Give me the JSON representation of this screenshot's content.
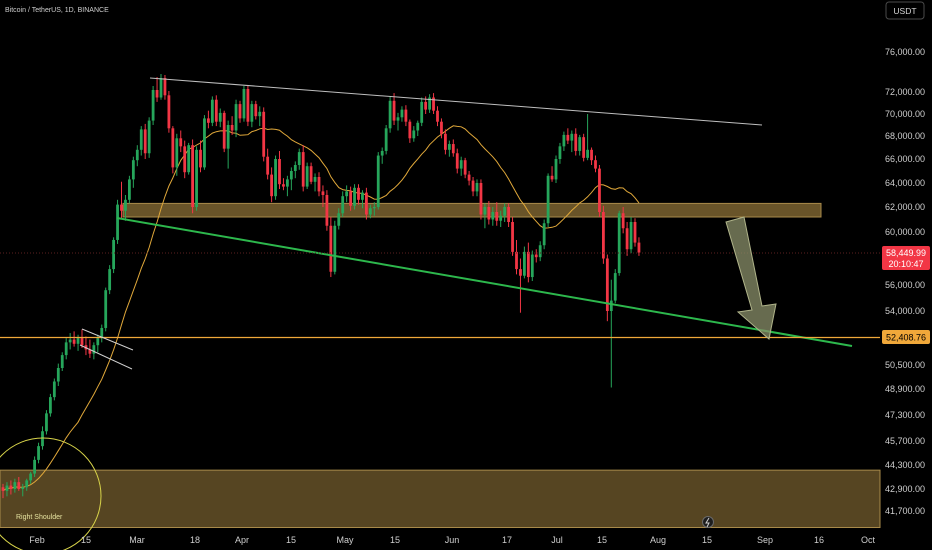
{
  "header": {
    "symbol": "Bitcoin / TetherUS, 1D, BINANCE",
    "currency_button": "USDT"
  },
  "chart_data": {
    "type": "candlestick",
    "title": "Bitcoin / TetherUS, 1D, BINANCE",
    "xlabel": "",
    "ylabel": "",
    "ylim": [
      40800,
      78500
    ],
    "y_ticks": [
      "76,000.00",
      "72,000.00",
      "70,000.00",
      "68,000.00",
      "66,000.00",
      "64,000.00",
      "62,000.00",
      "60,000.00",
      "56,000.00",
      "54,000.00",
      "50,500.00",
      "48,900.00",
      "47,300.00",
      "45,700.00",
      "44,300.00",
      "42,900.00",
      "41,700.00"
    ],
    "x_ticks": [
      "Feb",
      "15",
      "Mar",
      "18",
      "Apr",
      "15",
      "May",
      "15",
      "Jun",
      "17",
      "Jul",
      "15",
      "Aug",
      "15",
      "Sep",
      "16",
      "Oct"
    ],
    "current_price_label": "58,449.99",
    "countdown_label": "20:10:47",
    "level_price_label": "52,408.76",
    "annotations": [
      "Right Shoulder"
    ],
    "support_level": 52408.76,
    "zones": [
      {
        "low": 61200,
        "high": 62300
      },
      {
        "low": 40800,
        "high": 44000
      }
    ],
    "series": [
      {
        "values": [
          [
            43000,
            43200,
            42400,
            42800
          ],
          [
            42800,
            43300,
            42500,
            43100
          ],
          [
            43100,
            43400,
            42600,
            42900
          ],
          [
            42900,
            43500,
            42700,
            43300
          ],
          [
            43300,
            43600,
            42800,
            42900
          ],
          [
            42900,
            43200,
            42500,
            43000
          ],
          [
            43000,
            43500,
            42800,
            43400
          ],
          [
            43400,
            43900,
            43200,
            43800
          ],
          [
            43800,
            44800,
            43600,
            44600
          ],
          [
            44600,
            45600,
            44400,
            45400
          ],
          [
            45400,
            46600,
            45200,
            46300
          ],
          [
            46300,
            47600,
            46100,
            47400
          ],
          [
            47400,
            48600,
            47200,
            48400
          ],
          [
            48400,
            49600,
            48200,
            49400
          ],
          [
            49400,
            50600,
            49100,
            50300
          ],
          [
            50300,
            51400,
            50100,
            51200
          ],
          [
            51200,
            52400,
            50900,
            52100
          ],
          [
            52100,
            52700,
            51600,
            52300
          ],
          [
            52300,
            52800,
            51800,
            52000
          ],
          [
            52000,
            52600,
            51500,
            52400
          ],
          [
            52400,
            52900,
            51700,
            51900
          ],
          [
            51900,
            52500,
            51200,
            51600
          ],
          [
            51600,
            52300,
            51000,
            51300
          ],
          [
            51300,
            52100,
            50900,
            51900
          ],
          [
            51900,
            52600,
            51400,
            52400
          ],
          [
            52400,
            53200,
            52100,
            53000
          ],
          [
            53000,
            55800,
            52800,
            55600
          ],
          [
            55600,
            57500,
            55300,
            57200
          ],
          [
            57200,
            59600,
            56900,
            59400
          ],
          [
            59400,
            62600,
            59100,
            62200
          ],
          [
            62200,
            64100,
            61000,
            61700
          ],
          [
            61700,
            63000,
            60900,
            62600
          ],
          [
            62600,
            64600,
            62300,
            64300
          ],
          [
            64300,
            66200,
            63600,
            65900
          ],
          [
            65900,
            67200,
            65400,
            66800
          ],
          [
            66800,
            68900,
            66300,
            68600
          ],
          [
            68600,
            69100,
            66000,
            66500
          ],
          [
            66500,
            69700,
            66100,
            69400
          ],
          [
            69400,
            72600,
            69000,
            72200
          ],
          [
            72200,
            73500,
            71100,
            71500
          ],
          [
            71500,
            73800,
            71300,
            73400
          ],
          [
            73400,
            73700,
            71300,
            71700
          ],
          [
            71700,
            72100,
            68300,
            68700
          ],
          [
            68700,
            68900,
            64800,
            65300
          ],
          [
            65300,
            68200,
            64600,
            67800
          ],
          [
            67800,
            68500,
            66600,
            67100
          ],
          [
            67100,
            67600,
            64400,
            64900
          ],
          [
            64900,
            67400,
            64700,
            67200
          ],
          [
            67200,
            67700,
            61500,
            62000
          ],
          [
            62000,
            67100,
            61700,
            66800
          ],
          [
            66800,
            67600,
            64900,
            65300
          ],
          [
            65300,
            69900,
            65100,
            69600
          ],
          [
            69600,
            70300,
            68700,
            69200
          ],
          [
            69200,
            71600,
            68900,
            71300
          ],
          [
            71300,
            71700,
            68900,
            69300
          ],
          [
            69300,
            70500,
            68800,
            70100
          ],
          [
            70100,
            70300,
            66600,
            66900
          ],
          [
            66900,
            69400,
            65200,
            69000
          ],
          [
            69000,
            69800,
            68100,
            68500
          ],
          [
            68500,
            71300,
            67900,
            70900
          ],
          [
            70900,
            71200,
            69200,
            69600
          ],
          [
            69600,
            72600,
            69300,
            72300
          ],
          [
            72300,
            72700,
            68900,
            69300
          ],
          [
            69300,
            71200,
            68800,
            70900
          ],
          [
            70900,
            71200,
            69500,
            69800
          ],
          [
            69800,
            70700,
            68900,
            70200
          ],
          [
            70200,
            70600,
            65800,
            66200
          ],
          [
            66200,
            66900,
            64300,
            64700
          ],
          [
            64700,
            65300,
            62400,
            62900
          ],
          [
            62900,
            66300,
            62600,
            66000
          ],
          [
            66000,
            66700,
            63500,
            63900
          ],
          [
            63900,
            64400,
            63400,
            63700
          ],
          [
            63700,
            64600,
            62900,
            64300
          ],
          [
            64300,
            65300,
            63400,
            65000
          ],
          [
            65000,
            65800,
            64400,
            65500
          ],
          [
            65500,
            66900,
            65100,
            66600
          ],
          [
            66600,
            67200,
            63300,
            63700
          ],
          [
            63700,
            65700,
            63500,
            65400
          ],
          [
            65400,
            65700,
            63900,
            64100
          ],
          [
            64100,
            64800,
            63300,
            64500
          ],
          [
            64500,
            64900,
            62900,
            63300
          ],
          [
            63300,
            63800,
            62000,
            63000
          ],
          [
            63000,
            63400,
            60100,
            60500
          ],
          [
            60500,
            61200,
            56600,
            57000
          ],
          [
            57000,
            60900,
            56800,
            60500
          ],
          [
            60500,
            61900,
            60200,
            61500
          ],
          [
            61500,
            63300,
            61200,
            62900
          ],
          [
            62900,
            63800,
            62400,
            63300
          ],
          [
            63300,
            63700,
            61700,
            62100
          ],
          [
            62100,
            63900,
            61800,
            63600
          ],
          [
            63600,
            63900,
            62200,
            62600
          ],
          [
            62600,
            63400,
            61900,
            63200
          ],
          [
            63200,
            63600,
            61000,
            61400
          ],
          [
            61400,
            62200,
            61100,
            61900
          ],
          [
            61900,
            62400,
            61300,
            62000
          ],
          [
            62000,
            66600,
            61800,
            66300
          ],
          [
            66300,
            67000,
            65600,
            66700
          ],
          [
            66700,
            69000,
            66400,
            68700
          ],
          [
            68700,
            71600,
            68300,
            71200
          ],
          [
            71200,
            71900,
            69000,
            69400
          ],
          [
            69400,
            70100,
            68500,
            69700
          ],
          [
            69700,
            70700,
            69300,
            70400
          ],
          [
            70400,
            70800,
            68900,
            69300
          ],
          [
            69300,
            69500,
            67400,
            67800
          ],
          [
            67800,
            68900,
            67500,
            68500
          ],
          [
            68500,
            69400,
            68000,
            69200
          ],
          [
            69200,
            71500,
            68900,
            71100
          ],
          [
            71100,
            71600,
            70000,
            70400
          ],
          [
            70400,
            71800,
            70100,
            71500
          ],
          [
            71500,
            71900,
            70000,
            70300
          ],
          [
            70300,
            70700,
            68900,
            69300
          ],
          [
            69300,
            69600,
            67800,
            68200
          ],
          [
            68200,
            68600,
            66400,
            66800
          ],
          [
            66800,
            67600,
            66200,
            67300
          ],
          [
            67300,
            67700,
            66200,
            66500
          ],
          [
            66500,
            66900,
            64800,
            65200
          ],
          [
            65200,
            66200,
            64600,
            65900
          ],
          [
            65900,
            66100,
            64400,
            64700
          ],
          [
            64700,
            65000,
            63800,
            64200
          ],
          [
            64200,
            64500,
            62900,
            63300
          ],
          [
            63300,
            64300,
            62900,
            64000
          ],
          [
            64000,
            64300,
            61000,
            61400
          ],
          [
            61400,
            62300,
            60300,
            62000
          ],
          [
            62000,
            62500,
            60600,
            61000
          ],
          [
            61000,
            62000,
            60500,
            61600
          ],
          [
            61600,
            62400,
            60500,
            60900
          ],
          [
            60900,
            61700,
            60400,
            61300
          ],
          [
            61300,
            62300,
            60800,
            62000
          ],
          [
            62000,
            62300,
            60400,
            60800
          ],
          [
            60800,
            61200,
            58200,
            58500
          ],
          [
            58500,
            59400,
            56800,
            57200
          ],
          [
            57200,
            58000,
            53900,
            56700
          ],
          [
            56700,
            58900,
            56500,
            58500
          ],
          [
            58500,
            59200,
            56200,
            56600
          ],
          [
            56600,
            58600,
            56300,
            58300
          ],
          [
            58300,
            58700,
            57700,
            58100
          ],
          [
            58100,
            59300,
            57800,
            59000
          ],
          [
            59000,
            61000,
            58700,
            60700
          ],
          [
            60700,
            64800,
            60400,
            64600
          ],
          [
            64600,
            65400,
            64100,
            64300
          ],
          [
            64300,
            66300,
            64000,
            66000
          ],
          [
            66000,
            67400,
            65600,
            67100
          ],
          [
            67100,
            68400,
            66700,
            68100
          ],
          [
            68100,
            68700,
            67300,
            67600
          ],
          [
            67600,
            68500,
            66600,
            68200
          ],
          [
            68200,
            68700,
            66300,
            66700
          ],
          [
            66700,
            68100,
            66300,
            67900
          ],
          [
            67900,
            68200,
            65800,
            66100
          ],
          [
            66100,
            70000,
            65900,
            66800
          ],
          [
            66800,
            67000,
            65500,
            65900
          ],
          [
            65900,
            66300,
            64900,
            65200
          ],
          [
            65200,
            65500,
            61200,
            61600
          ],
          [
            61600,
            62100,
            57600,
            58000
          ],
          [
            58000,
            58300,
            53400,
            54000
          ],
          [
            54000,
            56400,
            49000,
            54800
          ],
          [
            54800,
            57200,
            54600,
            56900
          ],
          [
            56900,
            61700,
            56700,
            61500
          ],
          [
            61500,
            62000,
            59900,
            60300
          ],
          [
            60300,
            60800,
            58200,
            58700
          ],
          [
            58700,
            61200,
            58400,
            60800
          ],
          [
            60800,
            61100,
            58900,
            59200
          ],
          [
            59200,
            59600,
            58200,
            58450
          ]
        ]
      }
    ]
  }
}
